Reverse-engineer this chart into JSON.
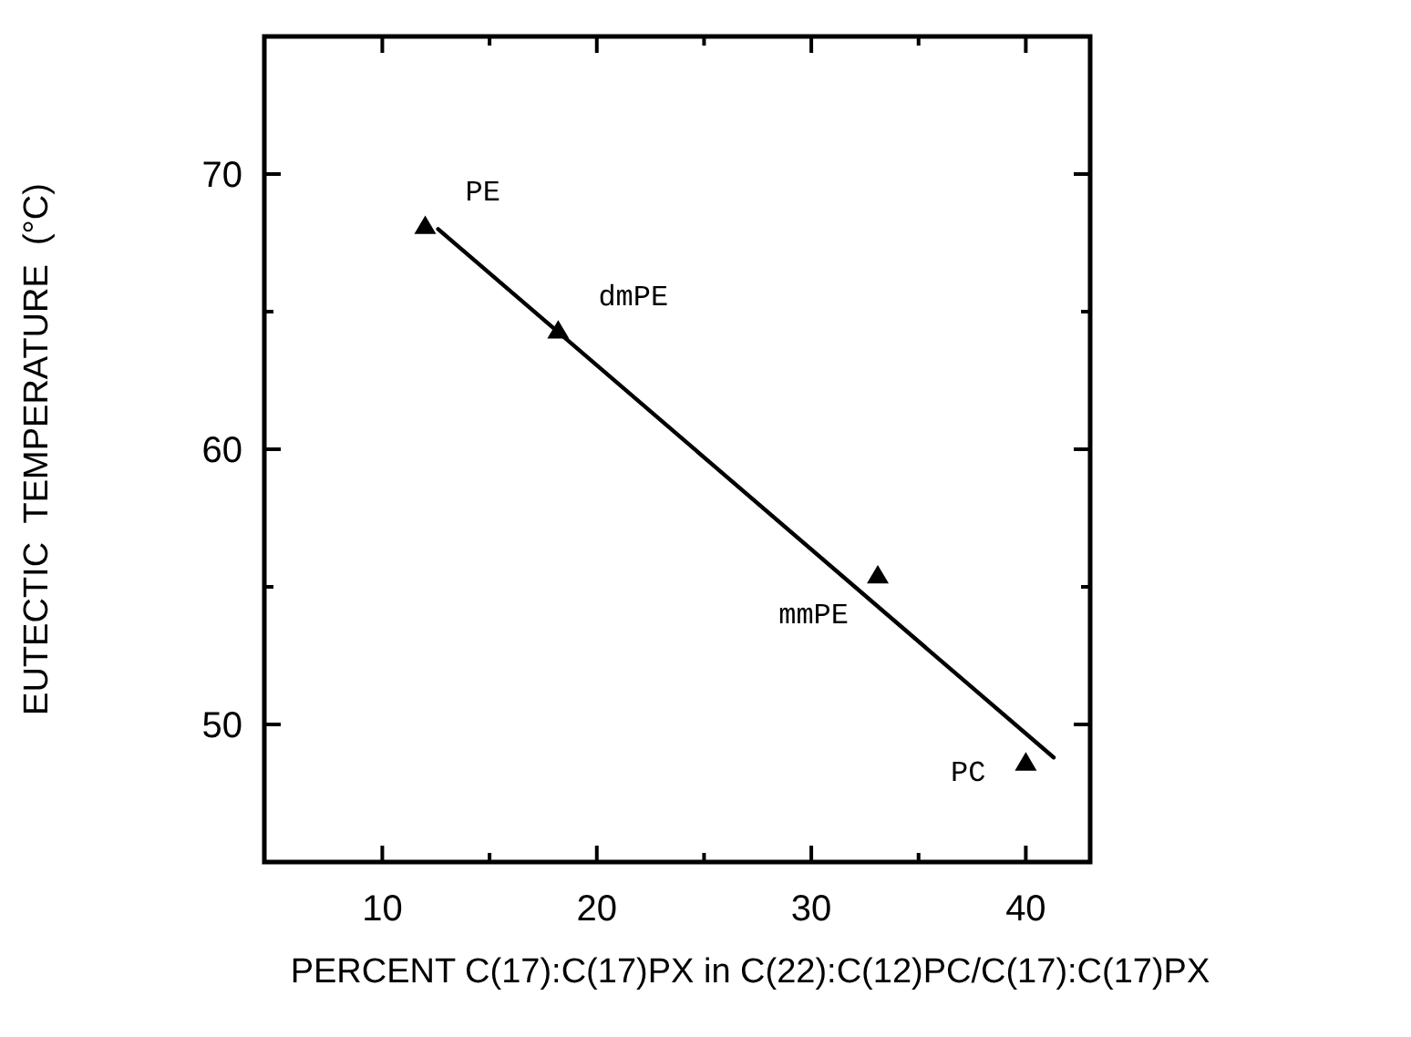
{
  "chart_data": {
    "type": "scatter",
    "xlabel": "PERCENT C(17):C(17)PX in C(22):C(12)PC/C(17):C(17)PX",
    "ylabel": "EUTECTIC  TEMPERATURE  (°C)",
    "series": [
      {
        "color": "#000000",
        "marker": "triangle",
        "x": [
          12,
          18.2,
          33.1,
          40
        ],
        "values": [
          68.1,
          64.3,
          55.4,
          48.6
        ]
      },
      {
        "type": "line",
        "color": "#000000",
        "marker": "none",
        "line_style": "solid",
        "x": [
          12.6,
          41.3
        ],
        "values": [
          68.0,
          48.8
        ]
      }
    ],
    "annotations": [
      {
        "text": "PE",
        "x": 12,
        "y": 68.1
      },
      {
        "text": "dmPE",
        "x": 18.2,
        "y": 64.3
      },
      {
        "text": "mmPE",
        "x": 33.1,
        "y": 55.4
      },
      {
        "text": "PC",
        "x": 40,
        "y": 48.6
      }
    ],
    "xlim": [
      4.5,
      43
    ],
    "ylim": [
      45,
      75
    ],
    "xticks": [
      10,
      {
        "value": 15,
        "label": null
      },
      20,
      {
        "value": 25,
        "label": null
      },
      30,
      {
        "value": 35,
        "label": null
      },
      40
    ],
    "yticks": [
      {
        "value": 45,
        "label": null
      },
      50,
      {
        "value": 55,
        "label": null
      },
      60,
      {
        "value": 65,
        "label": null
      },
      70,
      {
        "value": 75,
        "label": null
      }
    ],
    "grid": false
  }
}
